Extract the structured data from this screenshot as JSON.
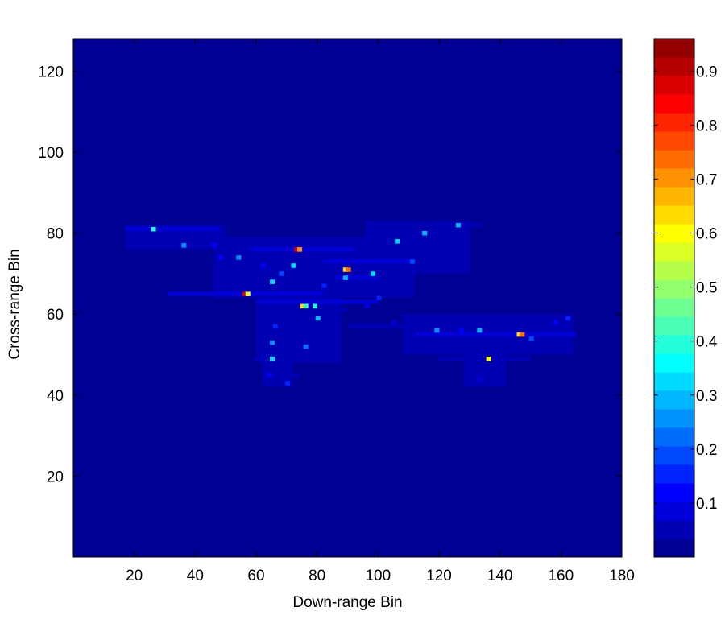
{
  "chart_data": {
    "type": "heatmap",
    "xlabel": "Down-range Bin",
    "ylabel": "Cross-range Bin",
    "xlim": [
      0,
      180
    ],
    "ylim": [
      0,
      128
    ],
    "x_ticks": [
      20,
      40,
      60,
      80,
      100,
      120,
      140,
      160,
      180
    ],
    "y_ticks": [
      20,
      40,
      60,
      80,
      100,
      120
    ],
    "grid": false,
    "background_value": 0.02,
    "colorbar": {
      "range": [
        0,
        0.96
      ],
      "ticks": [
        0.1,
        0.2,
        0.3,
        0.4,
        0.5,
        0.6,
        0.7,
        0.8,
        0.9
      ],
      "colormap": "jet",
      "levels": 28
    },
    "points": [
      {
        "x": 26,
        "y": 81,
        "v": 0.38
      },
      {
        "x": 36,
        "y": 77,
        "v": 0.24
      },
      {
        "x": 46,
        "y": 77,
        "v": 0.12
      },
      {
        "x": 54,
        "y": 74,
        "v": 0.26
      },
      {
        "x": 62,
        "y": 72,
        "v": 0.12
      },
      {
        "x": 65,
        "y": 68,
        "v": 0.34
      },
      {
        "x": 68,
        "y": 70,
        "v": 0.18
      },
      {
        "x": 72,
        "y": 72,
        "v": 0.32
      },
      {
        "x": 73,
        "y": 76,
        "v": 0.88
      },
      {
        "x": 74,
        "y": 76,
        "v": 0.7
      },
      {
        "x": 56,
        "y": 65,
        "v": 0.86
      },
      {
        "x": 57,
        "y": 65,
        "v": 0.55
      },
      {
        "x": 75,
        "y": 62,
        "v": 0.64
      },
      {
        "x": 76,
        "y": 62,
        "v": 0.42
      },
      {
        "x": 79,
        "y": 62,
        "v": 0.4
      },
      {
        "x": 80,
        "y": 59,
        "v": 0.3
      },
      {
        "x": 66,
        "y": 57,
        "v": 0.14
      },
      {
        "x": 65,
        "y": 53,
        "v": 0.24
      },
      {
        "x": 65,
        "y": 49,
        "v": 0.34
      },
      {
        "x": 76,
        "y": 52,
        "v": 0.22
      },
      {
        "x": 70,
        "y": 43,
        "v": 0.14
      },
      {
        "x": 64,
        "y": 45,
        "v": 0.12
      },
      {
        "x": 82,
        "y": 67,
        "v": 0.14
      },
      {
        "x": 89,
        "y": 71,
        "v": 0.62
      },
      {
        "x": 90,
        "y": 71,
        "v": 0.72
      },
      {
        "x": 89,
        "y": 69,
        "v": 0.3
      },
      {
        "x": 98,
        "y": 70,
        "v": 0.34
      },
      {
        "x": 100,
        "y": 64,
        "v": 0.14
      },
      {
        "x": 106,
        "y": 78,
        "v": 0.32
      },
      {
        "x": 111,
        "y": 73,
        "v": 0.18
      },
      {
        "x": 115,
        "y": 80,
        "v": 0.3
      },
      {
        "x": 126,
        "y": 82,
        "v": 0.28
      },
      {
        "x": 105,
        "y": 58,
        "v": 0.1
      },
      {
        "x": 119,
        "y": 56,
        "v": 0.26
      },
      {
        "x": 127,
        "y": 56,
        "v": 0.12
      },
      {
        "x": 133,
        "y": 56,
        "v": 0.28
      },
      {
        "x": 136,
        "y": 49,
        "v": 0.6
      },
      {
        "x": 146,
        "y": 55,
        "v": 0.62
      },
      {
        "x": 147,
        "y": 55,
        "v": 0.74
      },
      {
        "x": 150,
        "y": 54,
        "v": 0.18
      },
      {
        "x": 158,
        "y": 58,
        "v": 0.12
      },
      {
        "x": 162,
        "y": 59,
        "v": 0.14
      },
      {
        "x": 133,
        "y": 44,
        "v": 0.1
      },
      {
        "x": 48,
        "y": 74,
        "v": 0.12
      },
      {
        "x": 96,
        "y": 62,
        "v": 0.1
      }
    ],
    "streaks": [
      {
        "x0": 17,
        "x1": 48,
        "y": 81,
        "v": 0.07
      },
      {
        "x0": 40,
        "x1": 62,
        "y": 78,
        "v": 0.06
      },
      {
        "x0": 58,
        "x1": 92,
        "y": 76,
        "v": 0.07
      },
      {
        "x0": 82,
        "x1": 112,
        "y": 73,
        "v": 0.07
      },
      {
        "x0": 60,
        "x1": 100,
        "y": 71,
        "v": 0.06
      },
      {
        "x0": 86,
        "x1": 100,
        "y": 69,
        "v": 0.07
      },
      {
        "x0": 31,
        "x1": 82,
        "y": 65,
        "v": 0.07
      },
      {
        "x0": 60,
        "x1": 100,
        "y": 63,
        "v": 0.07
      },
      {
        "x0": 70,
        "x1": 90,
        "y": 61,
        "v": 0.06
      },
      {
        "x0": 62,
        "x1": 88,
        "y": 59,
        "v": 0.06
      },
      {
        "x0": 90,
        "x1": 128,
        "y": 57,
        "v": 0.06
      },
      {
        "x0": 112,
        "x1": 165,
        "y": 55,
        "v": 0.07
      },
      {
        "x0": 120,
        "x1": 164,
        "y": 53,
        "v": 0.06
      },
      {
        "x0": 67,
        "x1": 84,
        "y": 52,
        "v": 0.06
      },
      {
        "x0": 59,
        "x1": 74,
        "y": 49,
        "v": 0.06
      },
      {
        "x0": 120,
        "x1": 150,
        "y": 49,
        "v": 0.06
      },
      {
        "x0": 106,
        "x1": 126,
        "y": 80,
        "v": 0.06
      },
      {
        "x0": 120,
        "x1": 134,
        "y": 82,
        "v": 0.06
      },
      {
        "x0": 62,
        "x1": 74,
        "y": 45,
        "v": 0.05
      }
    ],
    "blobs": [
      {
        "x0": 17,
        "x1": 50,
        "y0": 76,
        "y1": 82,
        "v": 0.05
      },
      {
        "x0": 46,
        "x1": 112,
        "y0": 64,
        "y1": 79,
        "v": 0.05
      },
      {
        "x0": 60,
        "x1": 88,
        "y0": 48,
        "y1": 64,
        "v": 0.045
      },
      {
        "x0": 62,
        "x1": 72,
        "y0": 42,
        "y1": 50,
        "v": 0.04
      },
      {
        "x0": 96,
        "x1": 130,
        "y0": 70,
        "y1": 83,
        "v": 0.045
      },
      {
        "x0": 108,
        "x1": 164,
        "y0": 50,
        "y1": 60,
        "v": 0.045
      },
      {
        "x0": 128,
        "x1": 142,
        "y0": 42,
        "y1": 52,
        "v": 0.04
      }
    ]
  }
}
